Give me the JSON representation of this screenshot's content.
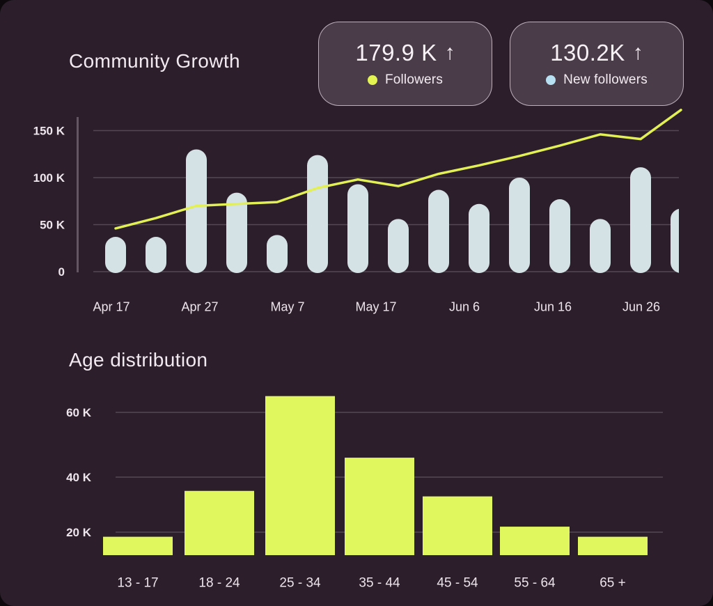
{
  "colors": {
    "background": "#2c1f2b",
    "accent_yellow": "#e2ef55",
    "age_bar_yellow": "#e1f75e",
    "growth_bar_blue": "#d4e2e6",
    "legend_dot_yellow": "#e3f452",
    "legend_dot_blue": "#b7e0f2",
    "card_background": "#4a3d49",
    "text_primary": "#f8f2f7",
    "grid_line": "rgba(232,218,230,0.22)"
  },
  "community_growth": {
    "title": "Community Growth",
    "stats": [
      {
        "value": "179.9 K",
        "arrow": "↑",
        "label": "Followers",
        "dot": "yellow-dot-icon"
      },
      {
        "value": "130.2K",
        "arrow": "↑",
        "label": "New followers",
        "dot": "blue-dot-icon"
      }
    ],
    "chart_data": {
      "type": "bar+line",
      "units": "K",
      "x_labels": [
        "Apr 17",
        "Apr 27",
        "May 7",
        "May 17",
        "Jun 6",
        "Jun 16",
        "Jun 26"
      ],
      "y_ticks": [
        {
          "label": "150 K",
          "value": 150
        },
        {
          "label": "100 K",
          "value": 100
        },
        {
          "label": "50 K",
          "value": 50
        },
        {
          "label": "0",
          "value": 0
        }
      ],
      "ylim": [
        0,
        175
      ],
      "grid": true,
      "bar_series": {
        "name": "New followers",
        "values_K": [
          37,
          37,
          130,
          84,
          39,
          124,
          93,
          56,
          87,
          72,
          100,
          77,
          56,
          111,
          67
        ]
      },
      "line_series": {
        "name": "Followers",
        "values_K": [
          46,
          57,
          70,
          72,
          74,
          89,
          98,
          91,
          104,
          113,
          123,
          134,
          146,
          141,
          172
        ]
      }
    }
  },
  "age_distribution": {
    "title": "Age distribution",
    "chart_data": {
      "type": "bar",
      "units": "K",
      "categories": [
        "13 - 17",
        "18 - 24",
        "25 - 34",
        "35 - 44",
        "45 - 54",
        "55 - 64",
        "65 +"
      ],
      "values_K": [
        16,
        35,
        65,
        46,
        33,
        22,
        16
      ],
      "y_ticks": [
        {
          "label": "60 K",
          "value": 60
        },
        {
          "label": "40 K",
          "value": 40
        },
        {
          "label": "20 K",
          "value": 20
        }
      ],
      "ylim": [
        0,
        70
      ],
      "grid": true
    }
  }
}
